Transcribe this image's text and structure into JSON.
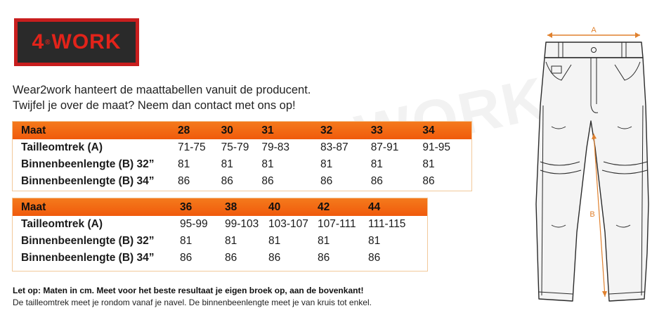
{
  "logo": {
    "text_left": "4",
    "text_right": "WORK",
    "reg_mark": "®"
  },
  "intro": {
    "line1": "Wear2work hanteert de maattabellen vanuit de producent.",
    "line2": "Twijfel je over de maat? Neem dan contact met ons op!"
  },
  "table1": {
    "header": {
      "label": "Maat",
      "sizes": [
        "28",
        "30",
        "31",
        "32",
        "33",
        "34"
      ]
    },
    "rows": [
      {
        "label": "Tailleomtrek (A)",
        "values": [
          "71-75",
          "75-79",
          "79-83",
          "83-87",
          "87-91",
          "91-95"
        ]
      },
      {
        "label": "Binnenbeenlengte (B) 32”",
        "values": [
          "81",
          "81",
          "81",
          "81",
          "81",
          "81"
        ]
      },
      {
        "label": "Binnenbeenlengte (B) 34”",
        "values": [
          "86",
          "86",
          "86",
          "86",
          "86",
          "86"
        ]
      }
    ]
  },
  "table2": {
    "header": {
      "label": "Maat",
      "sizes": [
        "36",
        "38",
        "40",
        "42",
        "44"
      ]
    },
    "rows": [
      {
        "label": "Tailleomtrek (A)",
        "values": [
          "95-99",
          "99-103",
          "103-107",
          "107-111",
          "111-115"
        ]
      },
      {
        "label": "Binnenbeenlengte (B) 32”",
        "values": [
          "81",
          "81",
          "81",
          "81",
          "81"
        ]
      },
      {
        "label": "Binnenbeenlengte (B) 34”",
        "values": [
          "86",
          "86",
          "86",
          "86",
          "86"
        ]
      }
    ]
  },
  "notes": {
    "bold": "Let op: Maten in cm. Meet voor het beste resultaat je eigen broek op, aan de bovenkant!",
    "regular": "De tailleomtrek meet je rondom vanaf je navel. De binnenbeenlengte meet je van kruis tot enkel."
  },
  "diagram": {
    "label_a": "A",
    "label_b": "B"
  },
  "watermark": "WORK",
  "colors": {
    "header_orange": "#f26a14",
    "logo_red": "#c81e1e",
    "logo_dark": "#2a2a2a",
    "measure": "#e0812e"
  }
}
